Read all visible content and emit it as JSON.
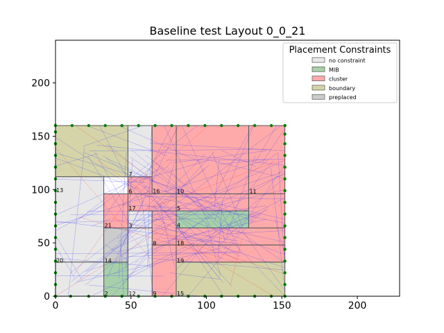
{
  "chart_data": {
    "type": "placement-layout",
    "title": "Baseline test Layout 0_0_21",
    "xlim": [
      0,
      228
    ],
    "ylim": [
      0,
      240
    ],
    "xticks": [
      0,
      50,
      100,
      150,
      200
    ],
    "yticks": [
      0,
      50,
      100,
      150,
      200
    ],
    "legend": {
      "title": "Placement Constraints",
      "placement": "top-right",
      "entries": [
        {
          "label": "no constraint",
          "color": "#e8e8e8"
        },
        {
          "label": "MIB",
          "color": "#a8d0a8"
        },
        {
          "label": "cluster",
          "color": "#ffaaaa"
        },
        {
          "label": "boundary",
          "color": "#d4d4a8"
        },
        {
          "label": "preplaced",
          "color": "#cccccc"
        }
      ]
    },
    "blocks": [
      {
        "id": "0",
        "x": 0,
        "y": 112,
        "w": 48,
        "h": 48,
        "type": "boundary",
        "label": ""
      },
      {
        "id": "1",
        "x": 0,
        "y": 32,
        "w": 32,
        "h": 80,
        "type": "no constraint",
        "label": ""
      },
      {
        "id": "2",
        "x": 32,
        "y": 0,
        "w": 16,
        "h": 32,
        "type": "MIB",
        "label": "2"
      },
      {
        "id": "3",
        "x": 48,
        "y": 64,
        "w": 16,
        "h": 16,
        "type": "no constraint",
        "label": "3"
      },
      {
        "id": "4",
        "x": 80,
        "y": 64,
        "w": 48,
        "h": 16,
        "type": "MIB",
        "label": "4"
      },
      {
        "id": "5",
        "x": 80,
        "y": 80,
        "w": 48,
        "h": 16,
        "type": "cluster",
        "label": "5"
      },
      {
        "id": "6",
        "x": 48,
        "y": 96,
        "w": 16,
        "h": 16,
        "type": "cluster",
        "label": "6"
      },
      {
        "id": "7",
        "x": 48,
        "y": 112,
        "w": 16,
        "h": 48,
        "type": "no constraint",
        "label": "7"
      },
      {
        "id": "8",
        "x": 64,
        "y": 48,
        "w": 16,
        "h": 32,
        "type": "cluster",
        "label": "8"
      },
      {
        "id": "9",
        "x": 64,
        "y": 0,
        "w": 16,
        "h": 48,
        "type": "cluster",
        "label": "9"
      },
      {
        "id": "10",
        "x": 80,
        "y": 96,
        "w": 48,
        "h": 64,
        "type": "cluster",
        "label": "10"
      },
      {
        "id": "11",
        "x": 128,
        "y": 96,
        "w": 24,
        "h": 64,
        "type": "cluster",
        "label": "11"
      },
      {
        "id": "12",
        "x": 48,
        "y": 0,
        "w": 16,
        "h": 64,
        "type": "no constraint",
        "label": "12"
      },
      {
        "id": "13",
        "x": 0,
        "y": 96,
        "w": 0,
        "h": 0,
        "type": "boundary",
        "label": "13"
      },
      {
        "id": "14",
        "x": 32,
        "y": 32,
        "w": 16,
        "h": 32,
        "type": "preplaced",
        "label": "14"
      },
      {
        "id": "15",
        "x": 80,
        "y": 0,
        "w": 72,
        "h": 32,
        "type": "boundary",
        "label": "15"
      },
      {
        "id": "16",
        "x": 64,
        "y": 96,
        "w": 16,
        "h": 64,
        "type": "cluster",
        "label": "16"
      },
      {
        "id": "17",
        "x": 48,
        "y": 80,
        "w": 32,
        "h": 16,
        "type": "cluster",
        "label": "17"
      },
      {
        "id": "18",
        "x": 80,
        "y": 48,
        "w": 72,
        "h": 16,
        "type": "cluster",
        "label": "18"
      },
      {
        "id": "19",
        "x": 80,
        "y": 32,
        "w": 72,
        "h": 16,
        "type": "cluster",
        "label": "19"
      },
      {
        "id": "20",
        "x": 0,
        "y": 0,
        "w": 32,
        "h": 32,
        "type": "no constraint",
        "label": "20"
      },
      {
        "id": "21",
        "x": 32,
        "y": 64,
        "w": 16,
        "h": 32,
        "type": "cluster",
        "label": "21"
      },
      {
        "id": "22",
        "x": 128,
        "y": 64,
        "w": 24,
        "h": 32,
        "type": "cluster",
        "label": ""
      }
    ],
    "label_points": [
      {
        "text": "13",
        "x": 0,
        "y": 97
      },
      {
        "text": "21",
        "x": 32,
        "y": 64
      },
      {
        "text": "20",
        "x": 0,
        "y": 31
      },
      {
        "text": "14",
        "x": 32,
        "y": 31
      },
      {
        "text": "2",
        "x": 32,
        "y": 0
      },
      {
        "text": "12",
        "x": 48,
        "y": 0
      },
      {
        "text": "9",
        "x": 64,
        "y": 0
      },
      {
        "text": "15",
        "x": 80,
        "y": 0
      },
      {
        "text": "19",
        "x": 80,
        "y": 31
      },
      {
        "text": "8",
        "x": 64,
        "y": 47
      },
      {
        "text": "18",
        "x": 80,
        "y": 47
      },
      {
        "text": "3",
        "x": 48,
        "y": 64
      },
      {
        "text": "4",
        "x": 80,
        "y": 64
      },
      {
        "text": "17",
        "x": 48,
        "y": 80
      },
      {
        "text": "5",
        "x": 80,
        "y": 80
      },
      {
        "text": "6",
        "x": 48,
        "y": 96
      },
      {
        "text": "16",
        "x": 64,
        "y": 96
      },
      {
        "text": "10",
        "x": 80,
        "y": 96
      },
      {
        "text": "11",
        "x": 128,
        "y": 96
      },
      {
        "text": "7",
        "x": 48,
        "y": 112
      }
    ],
    "pins_bottom_x": [
      0,
      10,
      22,
      33,
      44,
      55,
      66,
      77,
      88,
      99,
      110,
      121,
      132,
      143,
      152
    ],
    "pins_top_x": [
      0,
      11,
      22,
      33,
      44,
      55,
      66,
      77,
      88,
      99,
      110,
      121,
      132,
      143,
      152
    ],
    "pins_left_y": [
      0,
      11,
      22,
      33,
      44,
      55,
      66,
      77,
      88,
      99,
      110,
      121,
      132,
      143,
      154,
      160
    ],
    "pins_right_y": [
      0,
      11,
      22,
      33,
      44,
      55,
      66,
      77,
      88,
      99,
      110,
      121,
      132,
      143,
      152,
      160
    ]
  }
}
